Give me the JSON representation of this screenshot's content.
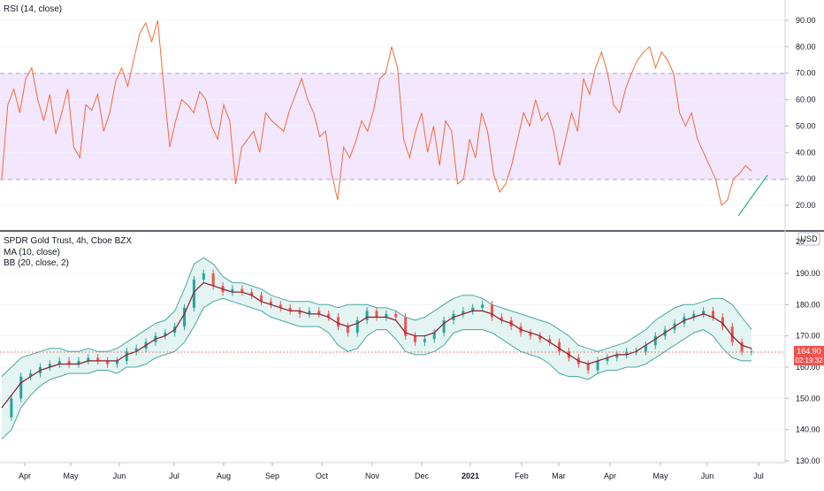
{
  "rsi_panel": {
    "legend": "RSI (14, close)",
    "ticks": [
      "90.00",
      "80.00",
      "70.00",
      "60.00",
      "50.00",
      "40.00",
      "30.00",
      "20.00"
    ]
  },
  "price_panel": {
    "legend": [
      "SPDR Gold Trust, 4h, Cboe BZX",
      "MA (10, close)",
      "BB (20, close, 2)"
    ],
    "currency": "USD",
    "ticks": [
      "190.00",
      "180.00",
      "170.00",
      "160.00",
      "150.00",
      "140.00",
      "130.00"
    ],
    "top_partial_tick": "20",
    "price_label": "164.90",
    "time_label": "02:19:32"
  },
  "x_axis": {
    "labels": [
      "Apr",
      "May",
      "Jun",
      "Jul",
      "Aug",
      "Sep",
      "Oct",
      "Nov",
      "Dec",
      "2021",
      "Feb",
      "Mar",
      "Apr",
      "May",
      "Jun",
      "Jul"
    ]
  },
  "colors": {
    "rsi_line": "#f26b38",
    "rsi_band_fill": "#f3e6ff",
    "rsi_band_border": "#b1a4c9",
    "trendline": "#2db37d",
    "bb_fill": "#e3f4f2",
    "bb_line": "#4aa7a0",
    "ma_line": "#8b1a2e",
    "candle_up": "#26a69a",
    "candle_down": "#ef5350",
    "price_label_bg": "#ef5350"
  },
  "chart_data": [
    {
      "type": "line",
      "title": "RSI (14, close)",
      "ylim": [
        12,
        95
      ],
      "bands": [
        30,
        70
      ],
      "x_labels": [
        "Apr",
        "May",
        "Jun",
        "Jul",
        "Aug",
        "Sep",
        "Oct",
        "Nov",
        "Dec",
        "2021",
        "Feb",
        "Mar",
        "Apr",
        "May",
        "Jun",
        "Jul"
      ],
      "series": [
        {
          "name": "RSI",
          "values": [
            30,
            58,
            64,
            55,
            68,
            72,
            60,
            52,
            62,
            47,
            55,
            64,
            42,
            38,
            58,
            56,
            62,
            48,
            55,
            67,
            72,
            65,
            75,
            85,
            89,
            82,
            90,
            65,
            42,
            52,
            60,
            58,
            55,
            63,
            60,
            50,
            45,
            58,
            52,
            28,
            42,
            45,
            48,
            40,
            55,
            52,
            50,
            48,
            56,
            62,
            68,
            60,
            55,
            46,
            48,
            32,
            22,
            42,
            38,
            44,
            52,
            48,
            56,
            68,
            70,
            80,
            72,
            45,
            38,
            48,
            55,
            40,
            50,
            35,
            52,
            48,
            28,
            30,
            45,
            38,
            55,
            48,
            32,
            25,
            28,
            35,
            45,
            55,
            50,
            60,
            52,
            55,
            48,
            35,
            45,
            55,
            48,
            68,
            62,
            72,
            78,
            70,
            58,
            55,
            64,
            70,
            75,
            78,
            80,
            72,
            78,
            75,
            70,
            55,
            50,
            55,
            45,
            40,
            35,
            30,
            20,
            22,
            30,
            32,
            35,
            33
          ]
        }
      ]
    },
    {
      "type": "line",
      "title": "SPDR Gold Trust, 4h, Cboe BZX",
      "ylim": [
        128,
        198
      ],
      "x_labels": [
        "Apr",
        "May",
        "Jun",
        "Jul",
        "Aug",
        "Sep",
        "Oct",
        "Nov",
        "Dec",
        "2021",
        "Feb",
        "Mar",
        "Apr",
        "May",
        "Jun",
        "Jul"
      ],
      "series": [
        {
          "name": "Close",
          "values": [
            144,
            150,
            157,
            158,
            160,
            161,
            162,
            161,
            162,
            163,
            162,
            161,
            162,
            165,
            166,
            168,
            170,
            171,
            173,
            179,
            188,
            190,
            186,
            184,
            185,
            184,
            183,
            181,
            180,
            179,
            178,
            177,
            178,
            177,
            176,
            173,
            171,
            175,
            178,
            176,
            177,
            176,
            170,
            168,
            169,
            171,
            175,
            177,
            178,
            179,
            180,
            176,
            175,
            173,
            171,
            170,
            169,
            168,
            165,
            163,
            161,
            159,
            162,
            163,
            164,
            165,
            165,
            167,
            170,
            172,
            174,
            176,
            177,
            178,
            176,
            173,
            168,
            165,
            165
          ]
        },
        {
          "name": "MA (10, close)",
          "values": [
            147,
            151,
            155,
            157,
            159,
            160,
            161,
            161,
            161,
            162,
            162,
            162,
            162,
            164,
            165,
            167,
            169,
            170,
            172,
            177,
            184,
            187,
            186,
            185,
            184,
            184,
            183,
            181,
            180,
            179,
            178,
            178,
            177,
            177,
            176,
            174,
            173,
            174,
            176,
            176,
            176,
            175,
            171,
            170,
            170,
            171,
            174,
            176,
            177,
            178,
            178,
            177,
            175,
            174,
            172,
            171,
            170,
            168,
            166,
            164,
            162,
            161,
            162,
            163,
            164,
            164,
            165,
            167,
            169,
            171,
            173,
            175,
            176,
            177,
            176,
            174,
            170,
            167,
            166
          ]
        },
        {
          "name": "BB Upper",
          "values": [
            157,
            160,
            163,
            164,
            165,
            166,
            166,
            165,
            165,
            166,
            165,
            165,
            166,
            168,
            170,
            172,
            174,
            175,
            178,
            185,
            193,
            195,
            193,
            189,
            187,
            187,
            186,
            185,
            183,
            182,
            181,
            181,
            181,
            180,
            180,
            179,
            180,
            180,
            180,
            179,
            179,
            178,
            176,
            175,
            176,
            178,
            180,
            182,
            183,
            183,
            182,
            180,
            179,
            178,
            177,
            176,
            175,
            174,
            172,
            170,
            167,
            166,
            165,
            166,
            167,
            168,
            170,
            172,
            175,
            177,
            179,
            180,
            180,
            181,
            182,
            182,
            180,
            176,
            172
          ]
        },
        {
          "name": "BB Lower",
          "values": [
            137,
            140,
            147,
            151,
            154,
            156,
            157,
            158,
            158,
            158,
            159,
            159,
            158,
            160,
            160,
            161,
            163,
            164,
            165,
            168,
            173,
            179,
            181,
            182,
            181,
            180,
            179,
            178,
            176,
            175,
            174,
            173,
            173,
            173,
            171,
            167,
            165,
            166,
            170,
            172,
            172,
            169,
            165,
            164,
            164,
            165,
            167,
            171,
            172,
            172,
            172,
            171,
            169,
            167,
            165,
            164,
            163,
            161,
            158,
            157,
            157,
            156,
            158,
            159,
            159,
            160,
            160,
            161,
            163,
            165,
            167,
            169,
            171,
            172,
            170,
            166,
            163,
            162,
            162
          ]
        }
      ]
    }
  ]
}
